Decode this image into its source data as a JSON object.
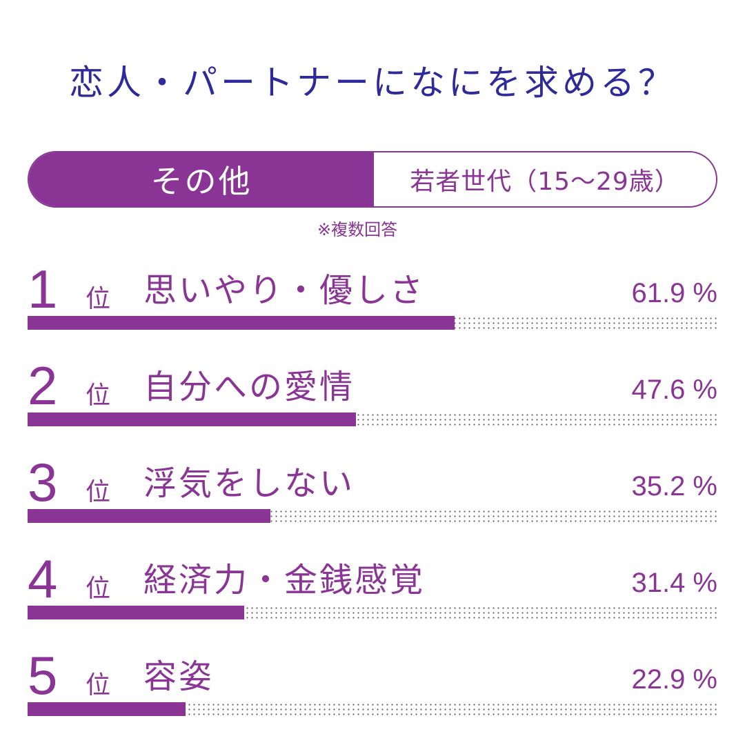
{
  "title": "恋人・パートナーになにを求める？",
  "tabs": {
    "active": "その他",
    "inactive": "若者世代（15～29歳）"
  },
  "note": "※複数回答",
  "rank_suffix": "位",
  "value_suffix": " %",
  "colors": {
    "accent": "#8a3595",
    "title": "#2e2a9a",
    "dots": "#555555"
  },
  "chart_data": {
    "type": "bar",
    "title": "恋人・パートナーになにを求める？",
    "categories": [
      "思いやり・優しさ",
      "自分への愛情",
      "浮気をしない",
      "経済力・金銭感覚",
      "容姿"
    ],
    "values": [
      61.9,
      47.6,
      35.2,
      31.4,
      22.9
    ],
    "value_labels": [
      "61.9 %",
      "47.6 %",
      "35.2 %",
      "31.4 %",
      "22.9 %"
    ],
    "ranks": [
      "1",
      "2",
      "3",
      "4",
      "5"
    ],
    "unit": "%",
    "ylim": [
      0,
      100
    ],
    "xlabel": "",
    "ylabel": "",
    "grid": false
  }
}
